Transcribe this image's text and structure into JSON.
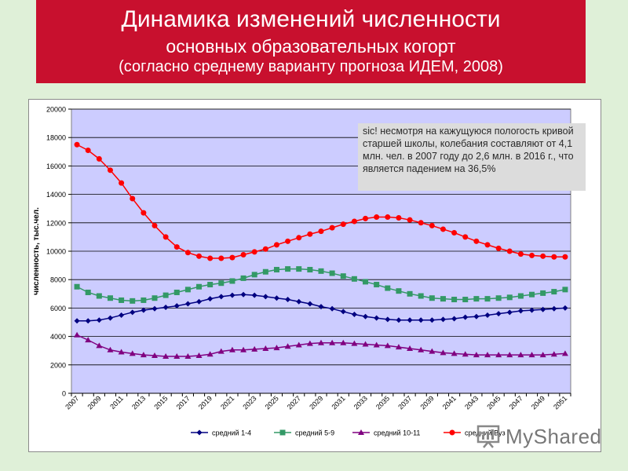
{
  "header": {
    "title": "Динамика изменений численности",
    "subtitle": "основных образовательных когорт",
    "note": "(согласно среднему варианту прогноза ИДЕМ, 2008)"
  },
  "annotation": "sic! несмотря на кажущуюся пологость кривой старшей школы, колебания составляют от 4,1 млн. чел. в 2007 году до 2,6 млн. в 2016 г., что является падением на 36,5%",
  "watermark": "MyShared",
  "chart_data": {
    "type": "line",
    "ylabel": "численность, тыс.чел.",
    "xlabel": "",
    "ylim": [
      0,
      20000
    ],
    "yticks": [
      0,
      2000,
      4000,
      6000,
      8000,
      10000,
      12000,
      14000,
      16000,
      18000,
      20000
    ],
    "x": [
      2007,
      2008,
      2009,
      2010,
      2011,
      2012,
      2013,
      2014,
      2015,
      2016,
      2017,
      2018,
      2019,
      2020,
      2021,
      2022,
      2023,
      2024,
      2025,
      2026,
      2027,
      2028,
      2029,
      2030,
      2031,
      2032,
      2033,
      2034,
      2035,
      2036,
      2037,
      2038,
      2039,
      2040,
      2041,
      2042,
      2043,
      2044,
      2045,
      2046,
      2047,
      2048,
      2049,
      2050,
      2051
    ],
    "xtick_labels": [
      "2007",
      "2009",
      "2011",
      "2013",
      "2015",
      "2017",
      "2019",
      "2021",
      "2023",
      "2025",
      "2027",
      "2029",
      "2031",
      "2033",
      "2035",
      "2037",
      "2039",
      "2041",
      "2043",
      "2045",
      "2047",
      "2049",
      "2051"
    ],
    "grid": true,
    "plot_background": "#ccccff",
    "legend_position": "bottom",
    "series": [
      {
        "name": "средний 1-4",
        "color": "#000080",
        "marker": "diamond",
        "values": [
          5100,
          5100,
          5150,
          5300,
          5500,
          5700,
          5850,
          5950,
          6050,
          6150,
          6300,
          6450,
          6650,
          6800,
          6900,
          6950,
          6900,
          6800,
          6700,
          6600,
          6450,
          6300,
          6100,
          5950,
          5750,
          5550,
          5400,
          5300,
          5200,
          5150,
          5150,
          5150,
          5150,
          5200,
          5250,
          5350,
          5400,
          5500,
          5600,
          5700,
          5800,
          5850,
          5900,
          5950,
          6000
        ]
      },
      {
        "name": "средний 5-9",
        "color": "#339966",
        "marker": "square",
        "values": [
          7500,
          7100,
          6850,
          6700,
          6550,
          6500,
          6550,
          6700,
          6900,
          7100,
          7300,
          7500,
          7650,
          7750,
          7900,
          8100,
          8350,
          8550,
          8700,
          8750,
          8750,
          8700,
          8600,
          8450,
          8250,
          8050,
          7850,
          7650,
          7400,
          7200,
          7000,
          6850,
          6700,
          6650,
          6600,
          6600,
          6650,
          6650,
          6700,
          6750,
          6850,
          6950,
          7050,
          7150,
          7300
        ]
      },
      {
        "name": "средний 10-11",
        "color": "#800080",
        "marker": "triangle",
        "values": [
          4100,
          3750,
          3350,
          3050,
          2900,
          2800,
          2700,
          2650,
          2600,
          2600,
          2600,
          2650,
          2750,
          2950,
          3050,
          3050,
          3100,
          3150,
          3200,
          3300,
          3400,
          3500,
          3550,
          3550,
          3550,
          3500,
          3450,
          3400,
          3350,
          3250,
          3150,
          3050,
          2950,
          2850,
          2800,
          2750,
          2700,
          2700,
          2700,
          2700,
          2700,
          2700,
          2700,
          2750,
          2800
        ]
      },
      {
        "name": "средний Вуз",
        "color": "#ff0000",
        "marker": "circle",
        "values": [
          17500,
          17100,
          16500,
          15700,
          14800,
          13700,
          12700,
          11800,
          11000,
          10300,
          9900,
          9650,
          9500,
          9500,
          9550,
          9750,
          9950,
          10150,
          10450,
          10700,
          10950,
          11200,
          11400,
          11650,
          11900,
          12100,
          12300,
          12400,
          12400,
          12350,
          12200,
          12000,
          11800,
          11550,
          11300,
          11000,
          10700,
          10450,
          10200,
          10000,
          9800,
          9700,
          9650,
          9600,
          9600
        ]
      }
    ]
  }
}
